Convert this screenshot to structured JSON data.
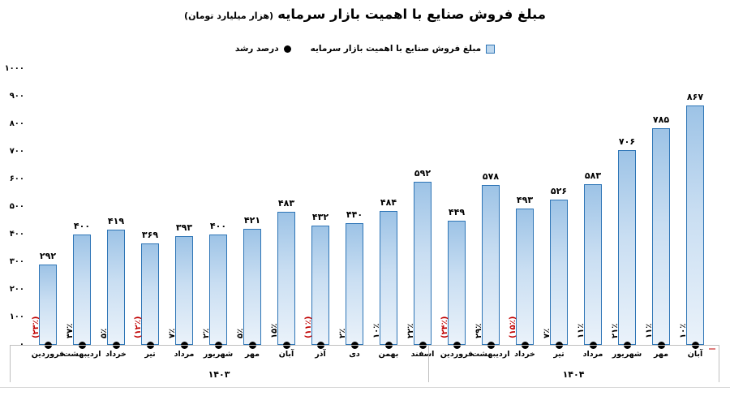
{
  "title": {
    "main": "مبلغ فروش صنایع با اهمیت بازار سرمایه",
    "unit": "(هزار میلیارد تومان)"
  },
  "legend": {
    "items": [
      {
        "label": "مبلغ فروش صنایع با اهمیت بازار سرمایه",
        "marker": "bar-square"
      },
      {
        "label": "درصد رشد",
        "marker": "black-dot"
      }
    ]
  },
  "colors": {
    "bar_border": "#2E75B6",
    "bar_fill_top": "#9DC3E6",
    "bar_fill_bottom": "#EAF2FA",
    "negative_label": "#C00000",
    "dot": "#000000",
    "axis_line": "#BFBFBF"
  },
  "y_axis": {
    "ticks": [
      {
        "label": "۰",
        "value": 0
      },
      {
        "label": "۱۰۰",
        "value": 100
      },
      {
        "label": "۲۰۰",
        "value": 200
      },
      {
        "label": "۳۰۰",
        "value": 300
      },
      {
        "label": "۴۰۰",
        "value": 400
      },
      {
        "label": "۵۰۰",
        "value": 500
      },
      {
        "label": "۶۰۰",
        "value": 600
      },
      {
        "label": "۷۰۰",
        "value": 700
      },
      {
        "label": "۸۰۰",
        "value": 800
      },
      {
        "label": "۹۰۰",
        "value": 900
      },
      {
        "label": "۱۰۰۰",
        "value": 1000
      }
    ]
  },
  "groups": [
    {
      "label": "۱۴۰۳",
      "count": 12
    },
    {
      "label": "۱۴۰۴",
      "count": 8
    }
  ],
  "bars": [
    {
      "month": "فروردین",
      "value": 292,
      "value_label": "۲۹۲",
      "growth_label": "(۲۳٪)",
      "negative": true
    },
    {
      "month": "اردیبهشت",
      "value": 400,
      "value_label": "۴۰۰",
      "growth_label": "۳۷٪",
      "negative": false
    },
    {
      "month": "خرداد",
      "value": 419,
      "value_label": "۴۱۹",
      "growth_label": "۵٪",
      "negative": false
    },
    {
      "month": "تیر",
      "value": 369,
      "value_label": "۳۶۹",
      "growth_label": "(۱۲٪)",
      "negative": true
    },
    {
      "month": "مرداد",
      "value": 393,
      "value_label": "۳۹۳",
      "growth_label": "۷٪",
      "negative": false
    },
    {
      "month": "شهریور",
      "value": 400,
      "value_label": "۴۰۰",
      "growth_label": "۲٪",
      "negative": false
    },
    {
      "month": "مهر",
      "value": 421,
      "value_label": "۴۲۱",
      "growth_label": "۵٪",
      "negative": false
    },
    {
      "month": "آبان",
      "value": 483,
      "value_label": "۴۸۳",
      "growth_label": "۱۵٪",
      "negative": false
    },
    {
      "month": "آذر",
      "value": 432,
      "value_label": "۴۳۲",
      "growth_label": "(۱۱٪)",
      "negative": true
    },
    {
      "month": "دی",
      "value": 440,
      "value_label": "۴۴۰",
      "growth_label": "۲٪",
      "negative": false
    },
    {
      "month": "بهمن",
      "value": 484,
      "value_label": "۴۸۴",
      "growth_label": "۱۰٪",
      "negative": false
    },
    {
      "month": "اسفند",
      "value": 592,
      "value_label": "۵۹۲",
      "growth_label": "۲۲٪",
      "negative": false
    },
    {
      "month": "فروردین",
      "value": 449,
      "value_label": "۴۴۹",
      "growth_label": "(۲۴٪)",
      "negative": true
    },
    {
      "month": "اردیبهشت",
      "value": 578,
      "value_label": "۵۷۸",
      "growth_label": "۲۹٪",
      "negative": false
    },
    {
      "month": "خرداد",
      "value": 493,
      "value_label": "۴۹۳",
      "growth_label": "(۱۵٪)",
      "negative": true
    },
    {
      "month": "تیر",
      "value": 526,
      "value_label": "۵۲۶",
      "growth_label": "۷٪",
      "negative": false
    },
    {
      "month": "مرداد",
      "value": 583,
      "value_label": "۵۸۳",
      "growth_label": "۱۱٪",
      "negative": false
    },
    {
      "month": "شهریور",
      "value": 706,
      "value_label": "۷۰۶",
      "growth_label": "۲۱٪",
      "negative": false
    },
    {
      "month": "مهر",
      "value": 785,
      "value_label": "۷۸۵",
      "growth_label": "۱۱٪",
      "negative": false
    },
    {
      "month": "آبان",
      "value": 867,
      "value_label": "۸۶۷",
      "growth_label": "۱۰٪",
      "negative": false
    }
  ],
  "chart_data": {
    "type": "bar",
    "title": "مبلغ فروش صنایع با اهمیت بازار سرمایه (هزار میلیارد تومان)",
    "categories": [
      "فروردین",
      "اردیبهشت",
      "خرداد",
      "تیر",
      "مرداد",
      "شهریور",
      "مهر",
      "آبان",
      "آذر",
      "دی",
      "بهمن",
      "اسفند",
      "فروردین",
      "اردیبهشت",
      "خرداد",
      "تیر",
      "مرداد",
      "شهریور",
      "مهر",
      "آبان"
    ],
    "category_groups": [
      {
        "label": "۱۴۰۳",
        "span": 12
      },
      {
        "label": "۱۴۰۴",
        "span": 8
      }
    ],
    "series": [
      {
        "name": "مبلغ فروش صنایع با اهمیت بازار سرمایه",
        "type": "bar",
        "values": [
          292,
          400,
          419,
          369,
          393,
          400,
          421,
          483,
          432,
          440,
          484,
          592,
          449,
          578,
          493,
          526,
          583,
          706,
          785,
          867
        ]
      },
      {
        "name": "درصد رشد",
        "type": "point",
        "values_percent": [
          -23,
          37,
          5,
          -12,
          7,
          2,
          5,
          15,
          -11,
          2,
          10,
          22,
          -24,
          29,
          -15,
          7,
          11,
          21,
          11,
          10
        ]
      }
    ],
    "xlabel": "",
    "ylabel": "",
    "ylim": [
      0,
      1000
    ],
    "yticks": [
      0,
      100,
      200,
      300,
      400,
      500,
      600,
      700,
      800,
      900,
      1000
    ],
    "grid": false,
    "legend_position": "top-center"
  }
}
